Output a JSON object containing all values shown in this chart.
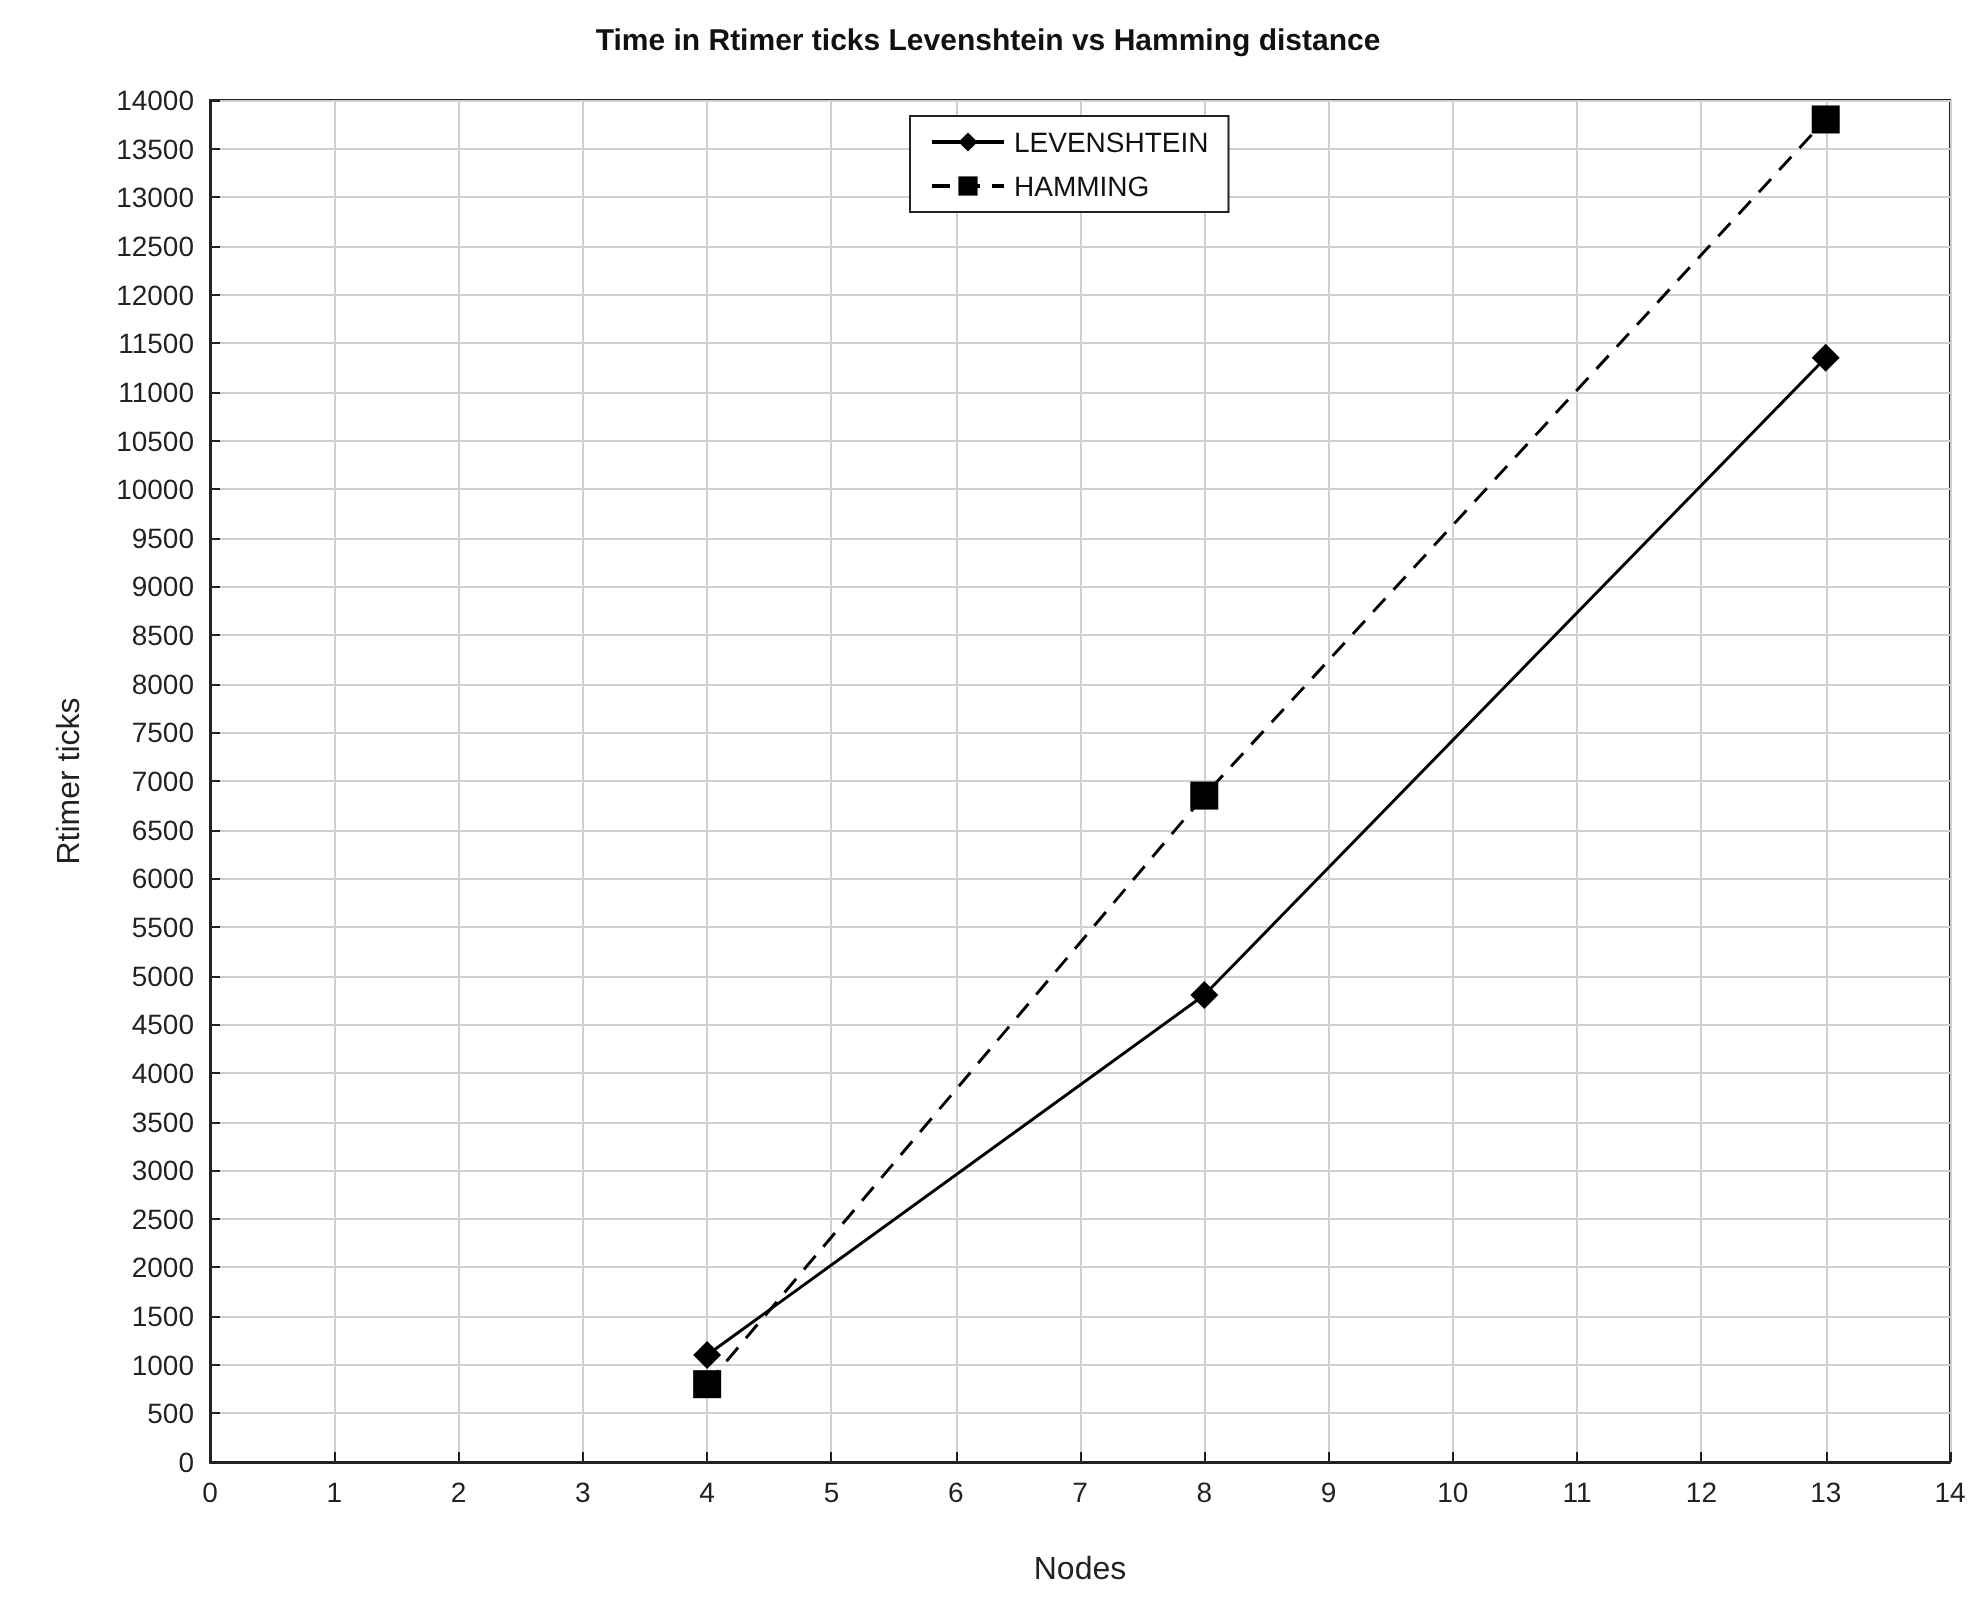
{
  "chart_data": {
    "type": "line",
    "title": "Time in Rtimer ticks Levenshtein vs Hamming distance",
    "xlabel": "Nodes",
    "ylabel": "Rtimer ticks",
    "x": [
      4,
      8,
      13
    ],
    "series": [
      {
        "name": "LEVENSHTEIN",
        "color": "#000000",
        "values": [
          1100,
          4800,
          11350
        ],
        "marker": "diamond",
        "line_style": "solid"
      },
      {
        "name": "HAMMING",
        "color": "#000000",
        "values": [
          800,
          6850,
          13800
        ],
        "marker": "square",
        "line_style": "dashed"
      }
    ],
    "xlim": [
      0,
      14
    ],
    "xticks": [
      0,
      1,
      2,
      3,
      4,
      5,
      6,
      7,
      8,
      9,
      10,
      11,
      12,
      13,
      14
    ],
    "ylim": [
      0,
      14000
    ],
    "yticks": [
      0,
      500,
      1000,
      1500,
      2000,
      2500,
      3000,
      3500,
      4000,
      4500,
      5000,
      5500,
      6000,
      6500,
      7000,
      7500,
      8000,
      8500,
      9000,
      9500,
      10000,
      10500,
      11000,
      11500,
      12000,
      12500,
      13000,
      13500,
      14000
    ],
    "grid": true,
    "legend": "top"
  }
}
